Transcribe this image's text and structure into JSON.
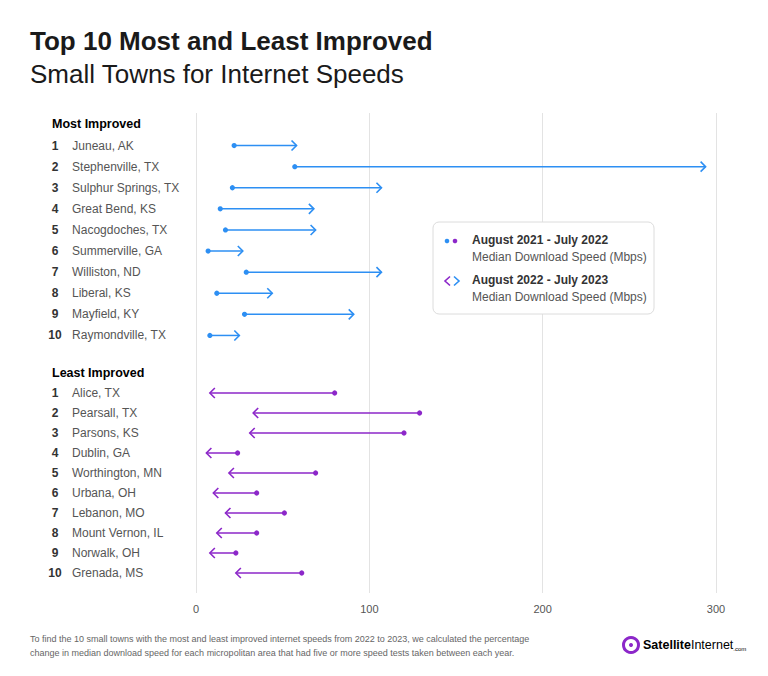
{
  "chart_data": {
    "type": "dumbbell",
    "title": "Top 10 Most and Least Improved",
    "subtitle": "Small Towns for Internet Speeds",
    "orientation": "horizontal",
    "grid": true,
    "xlim": [
      0,
      300
    ],
    "xticks": [
      0,
      100,
      200,
      300
    ],
    "value_label": "Median Download Speed (Mbps)",
    "groups": [
      {
        "name": "Most",
        "label": "Improved",
        "color": "#2d8ff3",
        "ranks": [
          1,
          2,
          3,
          4,
          5,
          6,
          7,
          8,
          9,
          10
        ],
        "categories": [
          "Juneau, AK",
          "Stephenville, TX",
          "Sulphur Springs, TX",
          "Great Bend, KS",
          "Nacogdoches, TX",
          "Summerville, GA",
          "Williston, ND",
          "Liberal, KS",
          "Mayfield, KY",
          "Raymondville, TX"
        ],
        "series": [
          {
            "name": "August 2021 - July 2022",
            "marker": "dot",
            "values": [
              22,
              57,
              21,
              14,
              17,
              7,
              29,
              12,
              28,
              8
            ]
          },
          {
            "name": "August 2022 - July 2023",
            "marker": "arrow",
            "values": [
              58,
              294,
              107,
              68,
              69,
              27,
              107,
              44,
              91,
              25
            ]
          }
        ]
      },
      {
        "name": "Least",
        "label": "Improved",
        "color": "#8c27c9",
        "ranks": [
          1,
          2,
          3,
          4,
          5,
          6,
          7,
          8,
          9,
          10
        ],
        "categories": [
          "Alice, TX",
          "Pearsall, TX",
          "Parsons, KS",
          "Dublin, GA",
          "Worthington, MN",
          "Urbana, OH",
          "Lebanon, MO",
          "Mount Vernon, IL",
          "Norwalk, OH",
          "Grenada, MS"
        ],
        "series": [
          {
            "name": "August 2021 - July 2022",
            "marker": "dot",
            "values": [
              80,
              129,
              120,
              24,
              69,
              35,
              51,
              35,
              23,
              61
            ]
          },
          {
            "name": "August 2022 - July 2023",
            "marker": "arrow",
            "values": [
              8,
              33,
              31,
              6,
              19,
              10,
              17,
              12,
              8,
              23
            ]
          }
        ]
      }
    ],
    "note": [
      "To find the 10 small towns with the most and least improved internet speeds from 2022 to 2023, we calculated the percentage",
      "change in median download speed for each micropolitan area that had five or more speed tests taken between each year."
    ],
    "brand": {
      "bold": "Satellite",
      "regular": "Internet",
      "suffix": ".com"
    }
  }
}
